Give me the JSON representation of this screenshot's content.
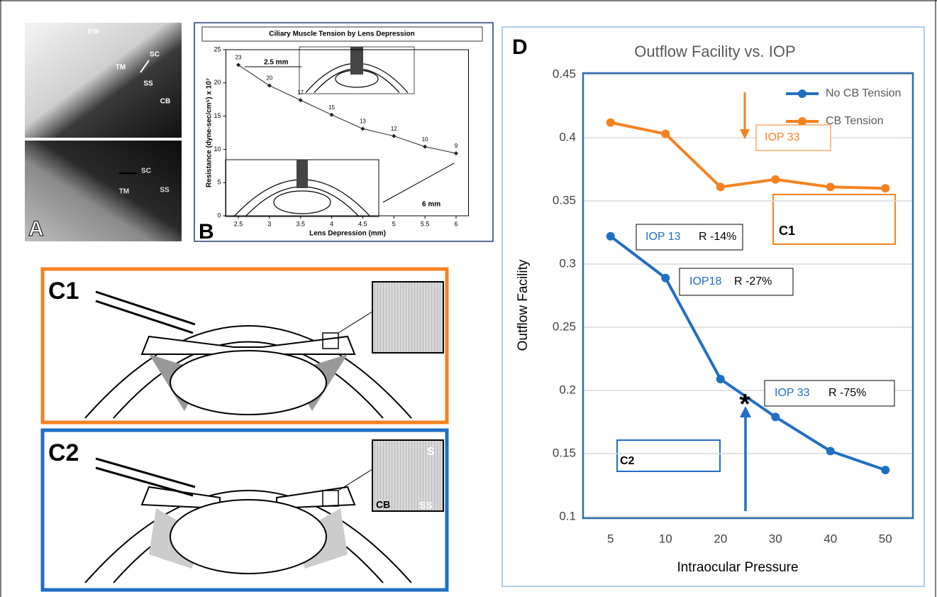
{
  "panels": {
    "a": {
      "label": "A",
      "labels": [
        "EW",
        "SC",
        "TM",
        "SS",
        "CB",
        "SC",
        "TM",
        "SS"
      ]
    },
    "c1": {
      "label": "C1"
    },
    "c2": {
      "label": "C2",
      "labels": [
        "S",
        "CB",
        "SS"
      ]
    }
  },
  "chart_data": [
    {
      "type": "line",
      "panel_label": "B",
      "title": "Ciliary Muscle Tension by Lens Depression",
      "x_label": "Lens Depression (mm)",
      "y_label": "Resistance (dyne-sec/cm⁵) x 10⁷",
      "x": [
        2.5,
        3,
        3.5,
        4,
        4.5,
        5,
        5.5,
        6
      ],
      "values": [
        22.7,
        19.6,
        17.4,
        15.2,
        13.1,
        12,
        10.4,
        9.4
      ],
      "value_labels": [
        "23",
        "20",
        "17",
        "15",
        "13",
        "12",
        "10",
        "9"
      ],
      "color": "#222222",
      "xlim": [
        2.3,
        6.2
      ],
      "xticks": [
        2.5,
        3,
        3.5,
        4,
        4.5,
        5,
        5.5,
        6
      ],
      "ylim": [
        0,
        25
      ],
      "yticks": [
        0,
        5,
        10,
        15,
        20,
        25
      ],
      "annotations": [
        "2.5 mm",
        "6 mm"
      ]
    },
    {
      "type": "line",
      "panel_label": "D",
      "title": "Outflow Facility vs. IOP",
      "x_label": "Intraocular Pressure",
      "y_label": "Outflow Facility",
      "categories": [
        "5",
        "10",
        "20",
        "30",
        "40",
        "50"
      ],
      "series": [
        {
          "name": "No CB Tension",
          "color": "#1f6fc5",
          "values": [
            0.322,
            0.289,
            0.209,
            0.179,
            0.152,
            0.137
          ]
        },
        {
          "name": "CB Tension",
          "color": "#f58220",
          "values": [
            0.412,
            0.403,
            0.361,
            0.367,
            0.361,
            0.36
          ]
        }
      ],
      "ylim": [
        0.1,
        0.45
      ],
      "yticks": [
        0.1,
        0.15,
        0.2,
        0.25,
        0.3,
        0.35,
        0.4,
        0.45
      ],
      "grid": true,
      "legend": "top-right",
      "annotations": [
        "IOP 33",
        "IOP 13",
        "R -14%",
        "IOP18",
        "R -27%",
        "IOP 33",
        "R -75%",
        "*",
        "C1",
        "C2"
      ]
    }
  ]
}
